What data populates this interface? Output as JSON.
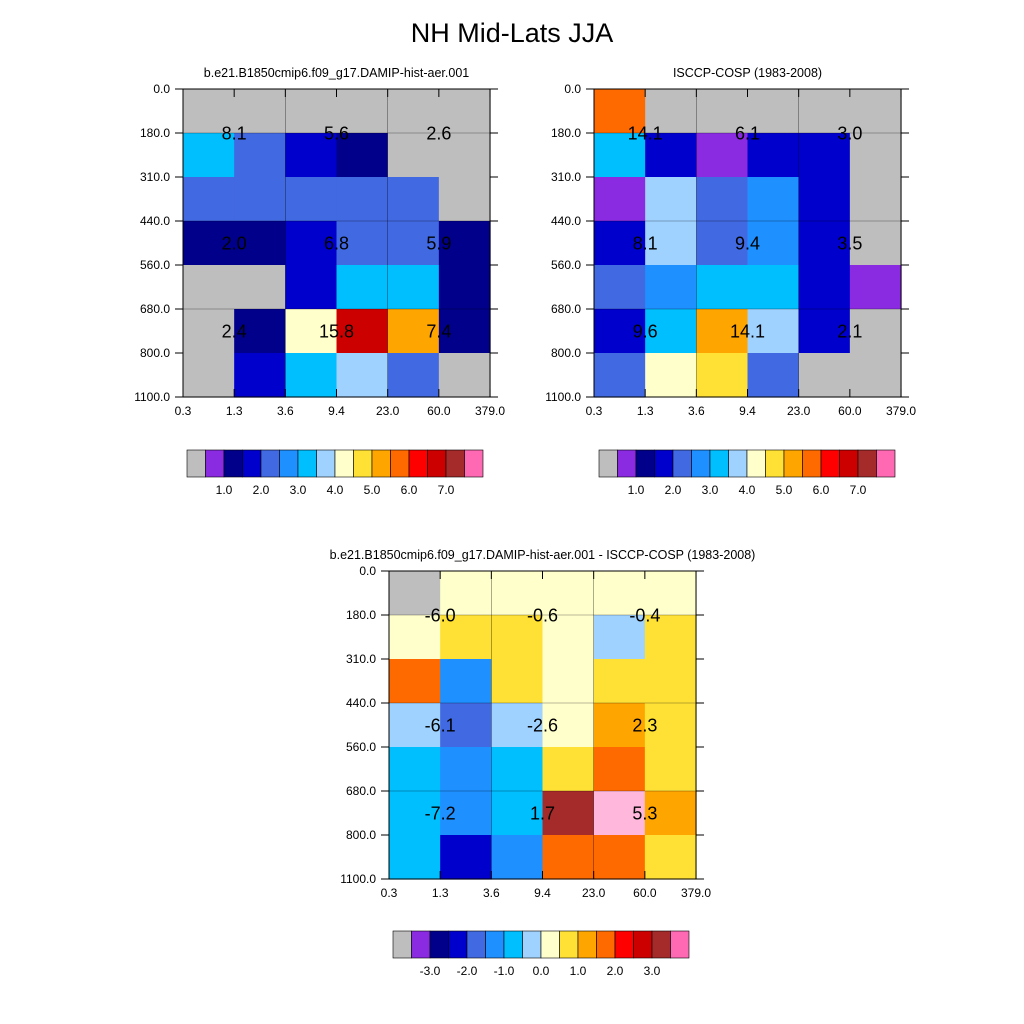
{
  "main_title": "NH Mid-Lats JJA",
  "chart_data": [
    {
      "type": "heatmap",
      "title": "b.e21.B1850cmip6.f09_g17.DAMIP-hist-aer.001",
      "x_ticks": [
        "0.3",
        "1.3",
        "3.6",
        "9.4",
        "23.0",
        "60.0",
        "379.0"
      ],
      "y_ticks": [
        "0.0",
        "180.0",
        "310.0",
        "440.0",
        "560.0",
        "680.0",
        "800.0",
        "1100.0"
      ],
      "cells": [
        [
          0,
          0,
          0,
          0,
          0,
          0
        ],
        [
          6,
          4,
          3,
          2,
          0,
          0
        ],
        [
          4,
          4,
          4,
          4,
          4,
          0
        ],
        [
          2,
          2,
          3,
          4,
          4,
          2
        ],
        [
          0,
          0,
          3,
          6,
          6,
          2
        ],
        [
          0,
          2,
          8,
          13,
          10,
          2
        ],
        [
          0,
          3,
          6,
          7,
          4,
          0
        ]
      ],
      "labels": [
        {
          "text": "8.1",
          "col": 1,
          "row": 1
        },
        {
          "text": "5.6",
          "col": 3,
          "row": 1
        },
        {
          "text": "2.6",
          "col": 5,
          "row": 1
        },
        {
          "text": "2.0",
          "col": 1,
          "row": 3.5
        },
        {
          "text": "6.8",
          "col": 3,
          "row": 3.5
        },
        {
          "text": "5.9",
          "col": 5,
          "row": 3.5
        },
        {
          "text": "2.4",
          "col": 1,
          "row": 5.5
        },
        {
          "text": "15.8",
          "col": 3,
          "row": 5.5
        },
        {
          "text": "7.4",
          "col": 5,
          "row": 5.5
        }
      ],
      "colorbar_labels": [
        "1.0",
        "2.0",
        "3.0",
        "4.0",
        "5.0",
        "6.0",
        "7.0"
      ]
    },
    {
      "type": "heatmap",
      "title": "ISCCP-COSP (1983-2008)",
      "x_ticks": [
        "0.3",
        "1.3",
        "3.6",
        "9.4",
        "23.0",
        "60.0",
        "379.0"
      ],
      "y_ticks": [
        "0.0",
        "180.0",
        "310.0",
        "440.0",
        "560.0",
        "680.0",
        "800.0",
        "1100.0"
      ],
      "cells": [
        [
          11,
          0,
          0,
          0,
          0,
          0
        ],
        [
          6,
          3,
          1,
          3,
          3,
          0
        ],
        [
          1,
          7,
          4,
          5,
          3,
          0
        ],
        [
          3,
          7,
          4,
          5,
          3,
          0
        ],
        [
          4,
          5,
          6,
          6,
          3,
          1
        ],
        [
          3,
          6,
          10,
          7,
          3,
          0
        ],
        [
          4,
          8,
          9,
          4,
          0,
          0
        ]
      ],
      "labels": [
        {
          "text": "14.1",
          "col": 1,
          "row": 1
        },
        {
          "text": "6.1",
          "col": 3,
          "row": 1
        },
        {
          "text": "3.0",
          "col": 5,
          "row": 1
        },
        {
          "text": "8.1",
          "col": 1,
          "row": 3.5
        },
        {
          "text": "9.4",
          "col": 3,
          "row": 3.5
        },
        {
          "text": "3.5",
          "col": 5,
          "row": 3.5
        },
        {
          "text": "9.6",
          "col": 1,
          "row": 5.5
        },
        {
          "text": "14.1",
          "col": 3,
          "row": 5.5
        },
        {
          "text": "2.1",
          "col": 5,
          "row": 5.5
        }
      ],
      "colorbar_labels": [
        "1.0",
        "2.0",
        "3.0",
        "4.0",
        "5.0",
        "6.0",
        "7.0"
      ]
    },
    {
      "type": "heatmap",
      "title": "b.e21.B1850cmip6.f09_g17.DAMIP-hist-aer.001 - ISCCP-COSP (1983-2008)",
      "x_ticks": [
        "0.3",
        "1.3",
        "3.6",
        "9.4",
        "23.0",
        "60.0",
        "379.0"
      ],
      "y_ticks": [
        "0.0",
        "180.0",
        "310.0",
        "440.0",
        "560.0",
        "680.0",
        "800.0",
        "1100.0"
      ],
      "cells": [
        [
          0,
          8,
          8,
          8,
          8,
          8
        ],
        [
          8,
          9,
          9,
          8,
          7,
          9
        ],
        [
          11,
          5,
          9,
          8,
          9,
          9
        ],
        [
          7,
          4,
          7,
          8,
          10,
          9
        ],
        [
          6,
          5,
          6,
          9,
          11,
          9
        ],
        [
          6,
          5,
          6,
          14,
          16,
          10
        ],
        [
          6,
          3,
          5,
          11,
          11,
          9
        ]
      ],
      "labels": [
        {
          "text": "-6.0",
          "col": 1,
          "row": 1
        },
        {
          "text": "-0.6",
          "col": 3,
          "row": 1
        },
        {
          "text": "-0.4",
          "col": 5,
          "row": 1
        },
        {
          "text": "-6.1",
          "col": 1,
          "row": 3.5
        },
        {
          "text": "-2.6",
          "col": 3,
          "row": 3.5
        },
        {
          "text": "2.3",
          "col": 5,
          "row": 3.5
        },
        {
          "text": "-7.2",
          "col": 1,
          "row": 5.5
        },
        {
          "text": "1.7",
          "col": 3,
          "row": 5.5
        },
        {
          "text": "5.3",
          "col": 5,
          "row": 5.5
        }
      ],
      "colorbar_labels": [
        "-3.0",
        "-2.0",
        "-1.0",
        "0.0",
        "1.0",
        "2.0",
        "3.0"
      ]
    }
  ],
  "palette": [
    "#bebebe",
    "#8a2be2",
    "#00008b",
    "#0000cd",
    "#4169e1",
    "#1e90ff",
    "#00bfff",
    "#a0d2ff",
    "#ffffcc",
    "#ffe135",
    "#ffa500",
    "#ff6a00",
    "#ff0000",
    "#cd0000",
    "#a52a2a",
    "#ff69b4",
    "#ffb8dc"
  ]
}
